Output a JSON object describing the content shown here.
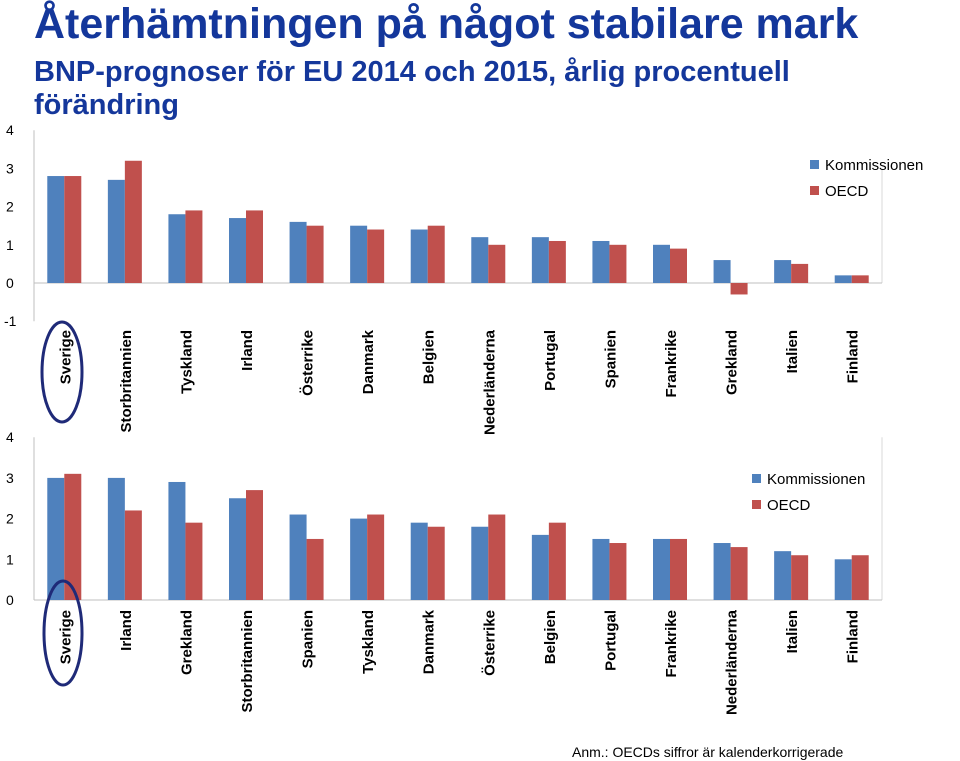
{
  "title": "Återhämtningen på något stabilare mark",
  "subtitle": "BNP-prognoser för EU 2014 och 2015, årlig procentuell förändring",
  "note": "Anm.: OECDs siffror är kalenderkorrigerade",
  "colors": {
    "kommissionen": "#4f81bd",
    "oecd": "#c0504d",
    "highlight": "#1f2a78"
  },
  "chart_data": [
    {
      "type": "bar",
      "highlighted_category": "Sverige",
      "categories": [
        "Sverige",
        "Storbritannien",
        "Tyskland",
        "Irland",
        "Österrike",
        "Danmark",
        "Belgien",
        "Nederländerna",
        "Portugal",
        "Spanien",
        "Frankrike",
        "Grekland",
        "Italien",
        "Finland"
      ],
      "series": [
        {
          "name": "Kommissionen",
          "values": [
            2.8,
            2.7,
            1.8,
            1.7,
            1.6,
            1.5,
            1.4,
            1.2,
            1.2,
            1.1,
            1.0,
            0.6,
            0.6,
            0.2
          ]
        },
        {
          "name": "OECD",
          "values": [
            2.8,
            3.2,
            1.9,
            1.9,
            1.5,
            1.4,
            1.5,
            1.0,
            1.1,
            1.0,
            0.9,
            -0.3,
            0.5,
            0.2
          ]
        }
      ],
      "yticks": [
        "-1",
        "0",
        "1",
        "2",
        "3",
        "4"
      ],
      "ylim": [
        -1,
        4
      ],
      "legend": "right"
    },
    {
      "type": "bar",
      "highlighted_category": "Sverige",
      "categories": [
        "Sverige",
        "Irland",
        "Grekland",
        "Storbritannien",
        "Spanien",
        "Tyskland",
        "Danmark",
        "Österrike",
        "Belgien",
        "Portugal",
        "Frankrike",
        "Nederländerna",
        "Italien",
        "Finland"
      ],
      "series": [
        {
          "name": "Kommissionen",
          "values": [
            3.0,
            3.0,
            2.9,
            2.5,
            2.1,
            2.0,
            1.9,
            1.8,
            1.6,
            1.5,
            1.5,
            1.4,
            1.2,
            1.0
          ]
        },
        {
          "name": "OECD",
          "values": [
            3.1,
            2.2,
            1.9,
            2.7,
            1.5,
            2.1,
            1.8,
            2.1,
            1.9,
            1.4,
            1.5,
            1.3,
            1.1,
            1.1
          ]
        }
      ],
      "yticks": [
        "0",
        "1",
        "2",
        "3",
        "4"
      ],
      "ylim": [
        0,
        4
      ],
      "legend": "right"
    }
  ]
}
